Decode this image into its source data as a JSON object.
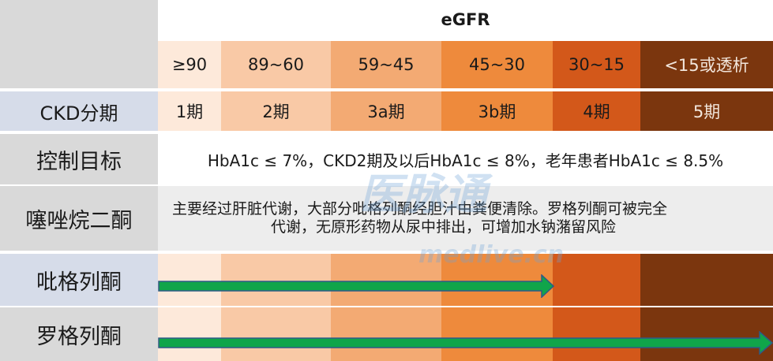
{
  "header": {
    "egfr_label": "eGFR"
  },
  "egfr_ranges": [
    "≥90",
    "89~60",
    "59~45",
    "45~30",
    "30~15",
    "<15或透析"
  ],
  "ckd_row": {
    "label": "CKD分期",
    "stages": [
      "1期",
      "2期",
      "3a期",
      "3b期",
      "4期",
      "5期"
    ]
  },
  "target_row": {
    "label": "控制目标",
    "text": "HbA1c ≤ 7%，CKD2期及以后HbA1c ≤ 8%，老年患者HbA1c ≤ 8.5%"
  },
  "tzd_row": {
    "label": "噻唑烷二酮",
    "line1": "主要经过肝脏代谢，大部分吡格列酮经胆汁由粪便清除。罗格列酮可被完全",
    "line2": "代谢，无原形药物从尿中排出，可增加水钠潴留风险"
  },
  "pioglitazone_row": {
    "label": "吡格列酮",
    "usable_through_stage": "3b期"
  },
  "rosiglitazone_row": {
    "label": "罗格列酮",
    "usable_through_stage": "5期"
  },
  "colors": {
    "stage1": "#FDE9DA",
    "stage2": "#F9C9A6",
    "stage3a": "#F3AA73",
    "stage3b": "#EE8A3C",
    "stage4": "#D3581A",
    "stage5": "#7B360E",
    "label_grey": "#D9D9D9",
    "label_blue": "#D6DCE9",
    "arrow": "#10A54A"
  },
  "watermark": {
    "brand": "医脉通",
    "site": "medlive.cn"
  }
}
